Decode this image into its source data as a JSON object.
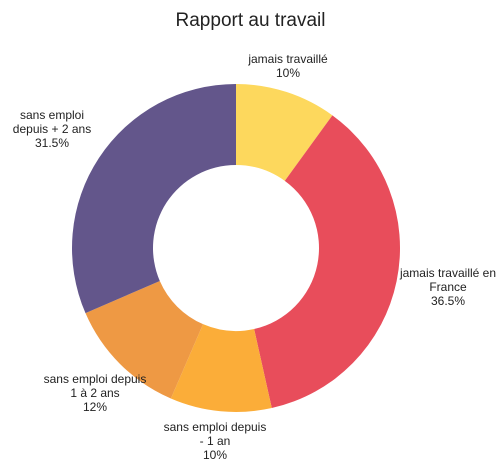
{
  "chart_data": {
    "type": "donut",
    "title": "Rapport au travail",
    "categories": [
      "jamais travaillé",
      "jamais travaillé en France",
      "sans emploi depuis - 1 an",
      "sans emploi depuis 1 à 2 ans",
      "sans emploi depuis + 2 ans"
    ],
    "values": [
      10,
      36.5,
      10,
      12,
      31.5
    ],
    "value_labels": [
      "10%",
      "36.5%",
      "10%",
      "12%",
      "31.5%"
    ],
    "colors": [
      "#fdd85d",
      "#e84d5b",
      "#fbad39",
      "#ee9944",
      "#63568b"
    ]
  }
}
